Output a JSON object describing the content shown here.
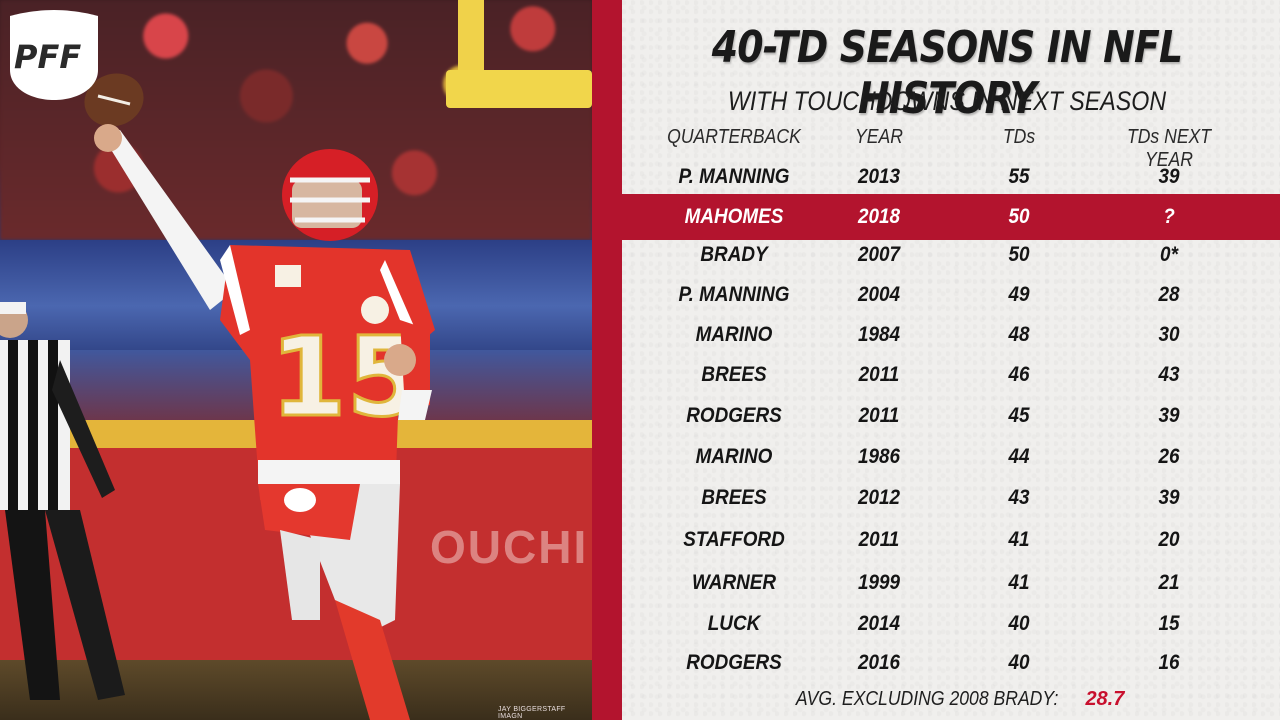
{
  "brand": {
    "logo_text": "PFF",
    "accent_color": "#b3142e",
    "highlight_color": "#c8102e"
  },
  "photo": {
    "credit": "JAY BIGGERSTAFF IMAGN",
    "wall_text": "OUCHI",
    "jersey_number": "15"
  },
  "title": "40-TD SEASONS IN NFL HISTORY",
  "subtitle": "WITH TOUCHDOWNS IN NEXT SEASON",
  "columns": [
    "QUARTERBACK",
    "YEAR",
    "TDs",
    "TDs NEXT YEAR"
  ],
  "rows": [
    {
      "qb": "P. MANNING",
      "year": "2013",
      "tds": "55",
      "next": "39",
      "highlight": false
    },
    {
      "qb": "MAHOMES",
      "year": "2018",
      "tds": "50",
      "next": "?",
      "highlight": true
    },
    {
      "qb": "BRADY",
      "year": "2007",
      "tds": "50",
      "next": "0*",
      "highlight": false
    },
    {
      "qb": "P. MANNING",
      "year": "2004",
      "tds": "49",
      "next": "28",
      "highlight": false
    },
    {
      "qb": "MARINO",
      "year": "1984",
      "tds": "48",
      "next": "30",
      "highlight": false
    },
    {
      "qb": "BREES",
      "year": "2011",
      "tds": "46",
      "next": "43",
      "highlight": false
    },
    {
      "qb": "RODGERS",
      "year": "2011",
      "tds": "45",
      "next": "39",
      "highlight": false
    },
    {
      "qb": "MARINO",
      "year": "1986",
      "tds": "44",
      "next": "26",
      "highlight": false
    },
    {
      "qb": "BREES",
      "year": "2012",
      "tds": "43",
      "next": "39",
      "highlight": false
    },
    {
      "qb": "STAFFORD",
      "year": "2011",
      "tds": "41",
      "next": "20",
      "highlight": false
    },
    {
      "qb": "WARNER",
      "year": "1999",
      "tds": "41",
      "next": "21",
      "highlight": false
    },
    {
      "qb": "LUCK",
      "year": "2014",
      "tds": "40",
      "next": "15",
      "highlight": false
    },
    {
      "qb": "RODGERS",
      "year": "2016",
      "tds": "40",
      "next": "16",
      "highlight": false
    }
  ],
  "footer": {
    "label": "AVG. EXCLUDING 2008 BRADY:",
    "value": "28.7"
  }
}
